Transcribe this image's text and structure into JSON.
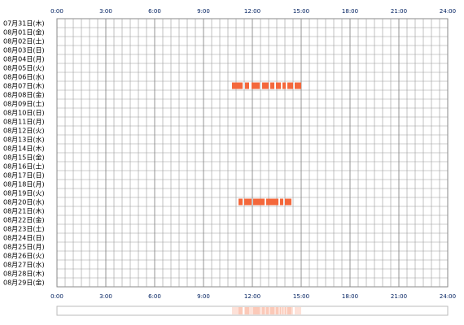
{
  "chart_data": {
    "type": "timeline",
    "categories": [
      "07月31日(木)",
      "08月01日(金)",
      "08月02日(土)",
      "08月03日(日)",
      "08月04日(月)",
      "08月05日(火)",
      "08月06日(水)",
      "08月07日(木)",
      "08月08日(金)",
      "08月09日(土)",
      "08月10日(日)",
      "08月11日(月)",
      "08月12日(火)",
      "08月13日(水)",
      "08月14日(木)",
      "08月15日(金)",
      "08月16日(土)",
      "08月17日(日)",
      "08月18日(月)",
      "08月19日(火)",
      "08月20日(水)",
      "08月21日(木)",
      "08月22日(金)",
      "08月23日(土)",
      "08月24日(日)",
      "08月25日(月)",
      "08月26日(火)",
      "08月27日(水)",
      "08月28日(木)",
      "08月29日(金)"
    ],
    "values": [
      [],
      [],
      [],
      [],
      [],
      [],
      [],
      [
        [
          10.75,
          11.4
        ],
        [
          11.55,
          11.8
        ],
        [
          11.95,
          12.45
        ],
        [
          12.6,
          13.0
        ],
        [
          13.1,
          13.35
        ],
        [
          13.45,
          13.75
        ],
        [
          13.85,
          14.05
        ],
        [
          14.15,
          14.5
        ],
        [
          14.6,
          15.0
        ]
      ],
      [],
      [],
      [],
      [],
      [],
      [],
      [],
      [],
      [],
      [],
      [],
      [],
      [
        [
          11.15,
          11.4
        ],
        [
          11.5,
          11.95
        ],
        [
          12.05,
          12.75
        ],
        [
          12.85,
          13.6
        ],
        [
          13.7,
          13.9
        ],
        [
          14.0,
          14.4
        ]
      ],
      [],
      [],
      [],
      [],
      [],
      [],
      [],
      [],
      []
    ],
    "color": "#f4683c",
    "xlim": [
      0,
      24
    ],
    "xticks": [
      {
        "value": 0,
        "label": "0:00"
      },
      {
        "value": 3,
        "label": "3:00"
      },
      {
        "value": 6,
        "label": "6:00"
      },
      {
        "value": 9,
        "label": "9:00"
      },
      {
        "value": 12,
        "label": "12:00"
      },
      {
        "value": 15,
        "label": "15:00"
      },
      {
        "value": 18,
        "label": "18:00"
      },
      {
        "value": 21,
        "label": "21:00"
      },
      {
        "value": 24,
        "label": "24:00"
      }
    ],
    "grid": true
  }
}
